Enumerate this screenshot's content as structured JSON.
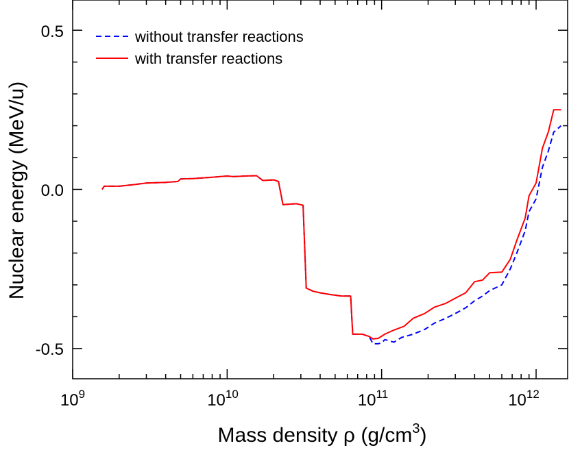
{
  "chart_data": {
    "type": "line",
    "xscale": "log",
    "xlim": [
      1000000000.0,
      1600000000000.0
    ],
    "ylim": [
      -0.595,
      0.595
    ],
    "xlabel": "Mass density ρ (g/cm",
    "xlabel_sup": "3",
    "xlabel_end": ")",
    "ylabel": "Nuclear energy (MeV/u)",
    "x_ticks": [
      {
        "base": "10",
        "exp": "9",
        "value": 1000000000.0
      },
      {
        "base": "10",
        "exp": "10",
        "value": 10000000000.0
      },
      {
        "base": "10",
        "exp": "11",
        "value": 100000000000.0
      },
      {
        "base": "10",
        "exp": "12",
        "value": 1000000000000.0
      }
    ],
    "y_ticks": [
      {
        "label": "0.5",
        "value": 0.5
      },
      {
        "label": "0.0",
        "value": 0.0
      },
      {
        "label": "-0.5",
        "value": -0.5
      }
    ],
    "legend_position": "top-left",
    "series": [
      {
        "name": "without transfer reactions",
        "color": "#0000ff",
        "dash": true,
        "points": [
          [
            1550000000.0,
            0.0
          ],
          [
            1600000000.0,
            0.01
          ],
          [
            2000000000.0,
            0.01
          ],
          [
            2500000000.0,
            0.015
          ],
          [
            3000000000.0,
            0.02
          ],
          [
            4000000000.0,
            0.022
          ],
          [
            4800000000.0,
            0.025
          ],
          [
            5000000000.0,
            0.033
          ],
          [
            6000000000.0,
            0.034
          ],
          [
            8000000000.0,
            0.038
          ],
          [
            10000000000.0,
            0.042
          ],
          [
            11000000000.0,
            0.04
          ],
          [
            13000000000.0,
            0.042
          ],
          [
            15500000000.0,
            0.043
          ],
          [
            17000000000.0,
            0.028
          ],
          [
            20000000000.0,
            0.03
          ],
          [
            21500000000.0,
            0.025
          ],
          [
            23000000000.0,
            -0.048
          ],
          [
            28000000000.0,
            -0.045
          ],
          [
            31000000000.0,
            -0.05
          ],
          [
            32500000000.0,
            -0.31
          ],
          [
            36000000000.0,
            -0.32
          ],
          [
            40000000000.0,
            -0.325
          ],
          [
            46000000000.0,
            -0.33
          ],
          [
            55000000000.0,
            -0.335
          ],
          [
            63000000000.0,
            -0.335
          ],
          [
            65000000000.0,
            -0.455
          ],
          [
            75000000000.0,
            -0.455
          ],
          [
            83000000000.0,
            -0.462
          ],
          [
            88000000000.0,
            -0.485
          ],
          [
            95000000000.0,
            -0.485
          ],
          [
            100000000000.0,
            -0.482
          ],
          [
            105000000000.0,
            -0.472
          ],
          [
            120000000000.0,
            -0.48
          ],
          [
            135000000000.0,
            -0.465
          ],
          [
            160000000000.0,
            -0.455
          ],
          [
            190000000000.0,
            -0.44
          ],
          [
            220000000000.0,
            -0.42
          ],
          [
            260000000000.0,
            -0.405
          ],
          [
            300000000000.0,
            -0.39
          ],
          [
            350000000000.0,
            -0.372
          ],
          [
            400000000000.0,
            -0.35
          ],
          [
            450000000000.0,
            -0.335
          ],
          [
            500000000000.0,
            -0.318
          ],
          [
            600000000000.0,
            -0.3
          ],
          [
            680000000000.0,
            -0.25
          ],
          [
            750000000000.0,
            -0.2
          ],
          [
            850000000000.0,
            -0.13
          ],
          [
            900000000000.0,
            -0.07
          ],
          [
            1000000000000.0,
            -0.03
          ],
          [
            1100000000000.0,
            0.07
          ],
          [
            1200000000000.0,
            0.12
          ],
          [
            1300000000000.0,
            0.18
          ],
          [
            1450000000000.0,
            0.2
          ]
        ]
      },
      {
        "name": "with transfer reactions",
        "color": "#ff0000",
        "dash": false,
        "points": [
          [
            1550000000.0,
            0.0
          ],
          [
            1600000000.0,
            0.01
          ],
          [
            2000000000.0,
            0.01
          ],
          [
            2500000000.0,
            0.015
          ],
          [
            3000000000.0,
            0.02
          ],
          [
            4000000000.0,
            0.022
          ],
          [
            4800000000.0,
            0.025
          ],
          [
            5000000000.0,
            0.033
          ],
          [
            6000000000.0,
            0.034
          ],
          [
            8000000000.0,
            0.038
          ],
          [
            10000000000.0,
            0.042
          ],
          [
            11000000000.0,
            0.04
          ],
          [
            13000000000.0,
            0.042
          ],
          [
            15500000000.0,
            0.043
          ],
          [
            17000000000.0,
            0.028
          ],
          [
            20000000000.0,
            0.03
          ],
          [
            21500000000.0,
            0.025
          ],
          [
            23000000000.0,
            -0.048
          ],
          [
            28000000000.0,
            -0.045
          ],
          [
            31000000000.0,
            -0.05
          ],
          [
            32500000000.0,
            -0.31
          ],
          [
            36000000000.0,
            -0.32
          ],
          [
            40000000000.0,
            -0.325
          ],
          [
            46000000000.0,
            -0.33
          ],
          [
            55000000000.0,
            -0.335
          ],
          [
            63000000000.0,
            -0.335
          ],
          [
            65000000000.0,
            -0.455
          ],
          [
            75000000000.0,
            -0.455
          ],
          [
            83000000000.0,
            -0.462
          ],
          [
            88000000000.0,
            -0.47
          ],
          [
            95000000000.0,
            -0.468
          ],
          [
            105000000000.0,
            -0.455
          ],
          [
            120000000000.0,
            -0.442
          ],
          [
            140000000000.0,
            -0.43
          ],
          [
            160000000000.0,
            -0.405
          ],
          [
            190000000000.0,
            -0.39
          ],
          [
            220000000000.0,
            -0.37
          ],
          [
            260000000000.0,
            -0.358
          ],
          [
            300000000000.0,
            -0.342
          ],
          [
            350000000000.0,
            -0.325
          ],
          [
            400000000000.0,
            -0.29
          ],
          [
            450000000000.0,
            -0.285
          ],
          [
            500000000000.0,
            -0.262
          ],
          [
            600000000000.0,
            -0.26
          ],
          [
            680000000000.0,
            -0.22
          ],
          [
            750000000000.0,
            -0.16
          ],
          [
            850000000000.0,
            -0.09
          ],
          [
            900000000000.0,
            -0.02
          ],
          [
            1000000000000.0,
            0.02
          ],
          [
            1100000000000.0,
            0.13
          ],
          [
            1200000000000.0,
            0.18
          ],
          [
            1300000000000.0,
            0.25
          ],
          [
            1450000000000.0,
            0.25
          ]
        ]
      }
    ]
  }
}
